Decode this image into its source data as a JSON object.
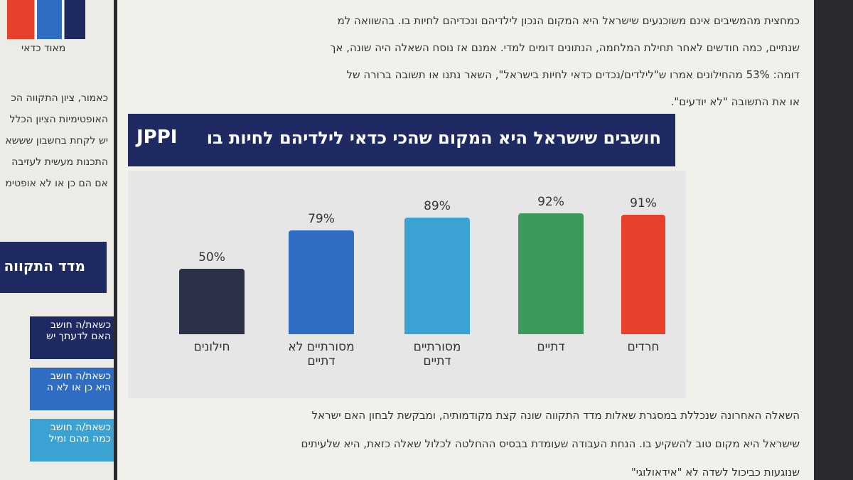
{
  "left_page": {
    "legend_label": "מאוד כדאי",
    "lines": [
      "כאמור, ציון התקווה הכ",
      "האופטימיות הציון הכלל",
      "יש לקחת בחשבון שששא",
      "התכנות מעשית לעזיבה",
      "אם הם כן או לא אופטימ"
    ],
    "section_title": "מדד התקווה",
    "boxes": [
      [
        "כשאת/ה חושב",
        "האם לדעתך יש"
      ],
      [
        "כשאת/ה חושב",
        "היא כן או לא ה"
      ],
      [
        "כשאת/ה חושב",
        "כמה מהם ומיל"
      ]
    ]
  },
  "text_above": [
    "כמחצית מהמשיבים אינם משוכנעים שישראל היא המקום הנכון לילדיהם ונכדיהם לחיות בו. בהשוואה למ",
    "שנתיים, כמה חודשים לאחר תחילת המלחמה, הנתונים דומים למדי. אמנם אז נוסח השאלה היה שונה, אך",
    "דומה: 53% מהחילונים אמרו ש\"לילדים/נכדים כדאי לחיות בישראל\", השאר נתנו או תשובה ברורה של",
    "או את התשובה \"לא יודעים\"."
  ],
  "chart_data": {
    "type": "bar",
    "title": "חושבים שישראל היא המקום שהכי כדאי לילדיהם לחיות בו",
    "logo": "JPPI",
    "categories": [
      "חרדים",
      "דתיים",
      "מסורתיים דתיים",
      "מסורתיים לא דתיים",
      "חילונים"
    ],
    "values": [
      91,
      92,
      89,
      79,
      50
    ],
    "value_labels": [
      "91%",
      "92%",
      "89%",
      "79%",
      "50%"
    ],
    "colors": [
      "#e8412b",
      "#3c9a5e",
      "#3ba3d3",
      "#2f6dc2",
      "#2b3147"
    ]
  },
  "text_below": [
    "השאלה האחרונה שנכללת במסגרת שאלות מדד התקווה שונה קצת מקודמותיה, ומבקשת לבחון האם ישראל",
    "שישראל היא מקום טוב להשקיע בו. הנחת העבודה שעומדת בבסיס ההחלטה לכלול שאלה כזאת, היא שלעיתים",
    "שנוגעות כביכול לשדה לא \"אידאולוגי\""
  ]
}
